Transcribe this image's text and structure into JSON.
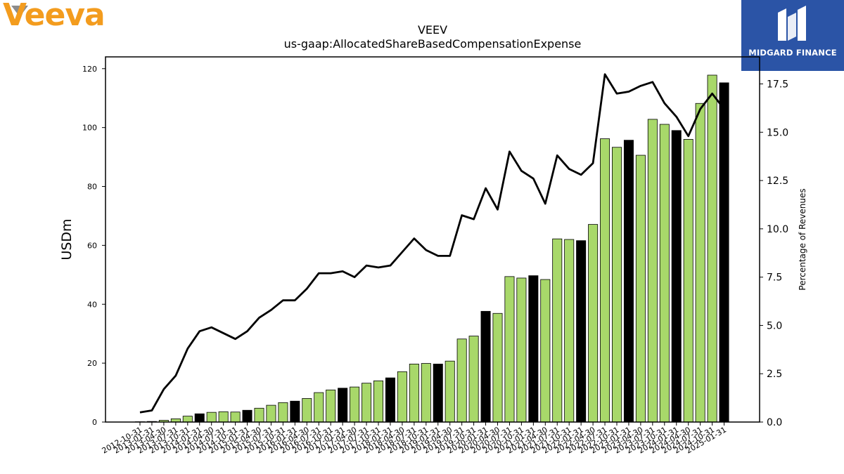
{
  "logos": {
    "left_brand": "Veeva",
    "right_brand": "MIDGARD FINANCE",
    "left_color": "#f39c1e",
    "right_color": "#2b54a6"
  },
  "chart_data": {
    "type": "bar",
    "title": "VEEV",
    "subtitle": "us-gaap:AllocatedShareBasedCompensationExpense",
    "ylabel": "USDm",
    "y2label": "Percentage of Revenues",
    "ylim": [
      0,
      124
    ],
    "y2lim": [
      0,
      18.9
    ],
    "yticks": [
      0,
      20,
      40,
      60,
      80,
      100,
      120
    ],
    "y2ticks": [
      "0.0",
      "2.5",
      "5.0",
      "7.5",
      "10.0",
      "12.5",
      "15.0",
      "17.5"
    ],
    "bar_color_quarter": "#a8d86a",
    "bar_color_fiscal_year_end": "#000000",
    "line_color": "#000000",
    "categories": [
      "2012-10-31",
      "2013-01-31",
      "2013-04-30",
      "2013-07-31",
      "2013-10-31",
      "2014-01-31",
      "2014-04-30",
      "2014-07-31",
      "2014-10-31",
      "2015-01-31",
      "2015-04-30",
      "2015-07-31",
      "2015-10-31",
      "2016-01-31",
      "2016-04-30",
      "2016-07-31",
      "2016-10-31",
      "2017-01-31",
      "2017-04-30",
      "2017-07-31",
      "2017-10-31",
      "2018-01-31",
      "2018-04-30",
      "2018-07-31",
      "2018-10-31",
      "2019-01-31",
      "2019-04-30",
      "2019-07-31",
      "2019-10-31",
      "2020-01-31",
      "2020-04-30",
      "2020-07-31",
      "2020-10-31",
      "2021-01-31",
      "2021-04-30",
      "2021-07-31",
      "2021-10-31",
      "2022-01-31",
      "2022-04-30",
      "2022-07-31",
      "2022-10-31",
      "2023-01-31",
      "2023-04-30",
      "2023-07-31",
      "2023-10-31",
      "2024-01-31",
      "2024-04-30",
      "2024-07-31",
      "2024-10-31",
      "2025-01-31"
    ],
    "series": [
      {
        "kind": "bar",
        "axis": "left",
        "values": [
          0.1,
          0.2,
          0.6,
          1.1,
          2.0,
          2.8,
          3.3,
          3.5,
          3.4,
          4.0,
          4.7,
          5.7,
          6.6,
          7.1,
          8.0,
          10.0,
          10.9,
          11.5,
          11.9,
          13.2,
          14.0,
          15.0,
          17.1,
          19.7,
          19.9,
          19.7,
          20.7,
          28.2,
          29.2,
          37.6,
          36.9,
          49.4,
          48.9,
          49.7,
          48.4,
          62.2,
          62.0,
          61.6,
          67.1,
          96.2,
          93.3,
          95.7,
          90.6,
          102.8,
          101.1,
          99.0,
          96.0,
          108.2,
          117.8,
          115.2
        ],
        "fiscal_year_end": [
          false,
          true,
          false,
          false,
          false,
          true,
          false,
          false,
          false,
          true,
          false,
          false,
          false,
          true,
          false,
          false,
          false,
          true,
          false,
          false,
          false,
          true,
          false,
          false,
          false,
          true,
          false,
          false,
          false,
          true,
          false,
          false,
          false,
          true,
          false,
          false,
          false,
          true,
          false,
          false,
          false,
          true,
          false,
          false,
          false,
          true,
          false,
          false,
          false,
          true
        ]
      },
      {
        "kind": "line",
        "axis": "right",
        "values": [
          0.5,
          0.6,
          1.7,
          2.4,
          3.8,
          4.7,
          4.9,
          4.6,
          4.3,
          4.7,
          5.4,
          5.8,
          6.3,
          6.3,
          6.9,
          7.7,
          7.7,
          7.8,
          7.5,
          8.1,
          8.0,
          8.1,
          8.8,
          9.5,
          8.9,
          8.6,
          8.6,
          10.7,
          10.5,
          12.1,
          11.0,
          14.0,
          13.0,
          12.6,
          11.3,
          13.8,
          13.1,
          12.8,
          13.4,
          18.0,
          17.0,
          17.1,
          17.4,
          17.6,
          16.5,
          15.8,
          14.8,
          16.2,
          17.0,
          16.2
        ]
      }
    ],
    "grid": false,
    "legend": "none"
  }
}
